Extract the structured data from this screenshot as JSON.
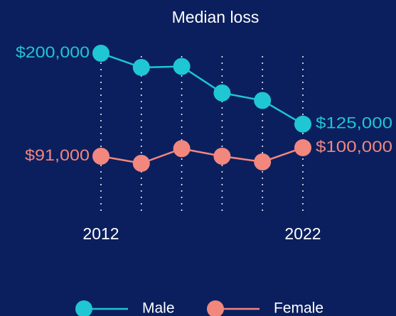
{
  "chart_data": {
    "type": "line",
    "title": "Median loss",
    "categories": [
      "2012",
      null,
      null,
      null,
      null,
      "2022"
    ],
    "series": [
      {
        "name": "Male",
        "color": "#1fc6d3",
        "values": [
          200000,
          185000,
          186000,
          158000,
          150000,
          125000
        ],
        "value_labels": [
          "$200,000",
          null,
          null,
          null,
          null,
          "$125,000"
        ]
      },
      {
        "name": "Female",
        "color": "#f2877e",
        "values": [
          91000,
          83500,
          99000,
          91000,
          85000,
          100000
        ],
        "value_labels": [
          "$91,000",
          null,
          null,
          null,
          null,
          "$100,000"
        ]
      }
    ]
  }
}
